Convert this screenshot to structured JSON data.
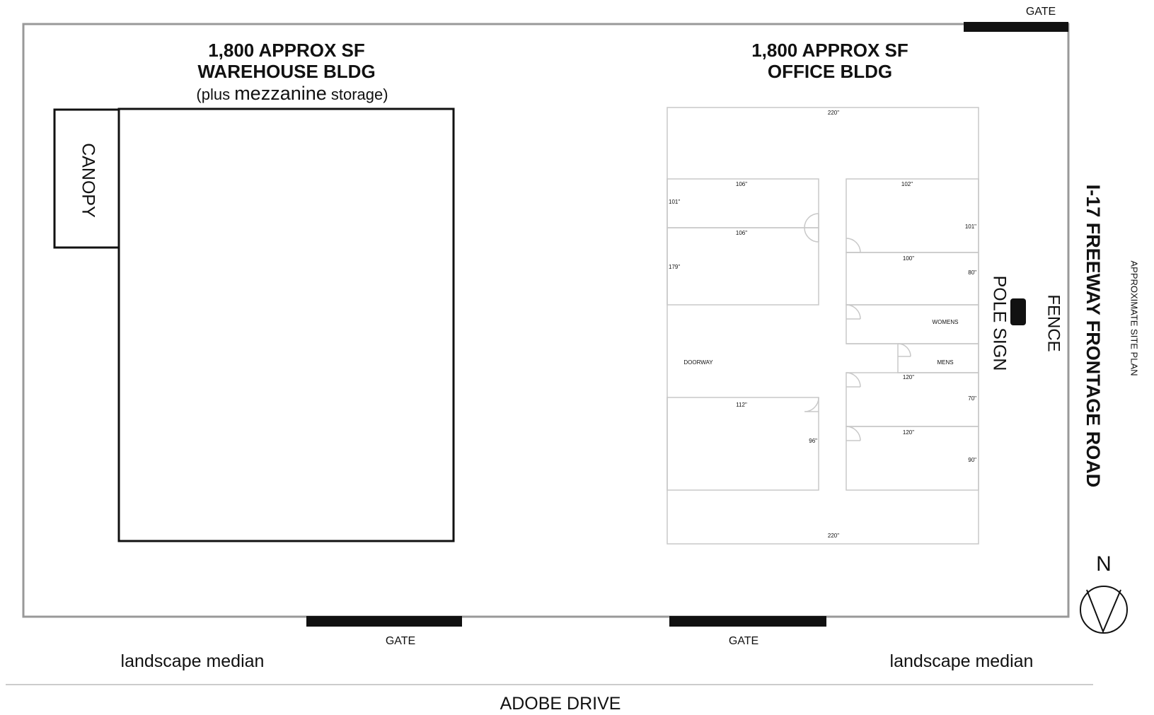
{
  "warehouse": {
    "title_line1": "1,800 APPROX SF",
    "title_line2": "WAREHOUSE BLDG",
    "note_prefix": "(plus ",
    "note_emph": "mezzanine",
    "note_suffix": " storage)",
    "canopy_label": "CANOPY"
  },
  "office": {
    "title_line1": "1,800 APPROX SF",
    "title_line2": "OFFICE BLDG",
    "rooms": {
      "doorway": "DOORWAY",
      "womens": "WOMENS",
      "mens": "MENS"
    },
    "dimensions": {
      "top": "220\"",
      "bottom": "220\"",
      "room_nw_width": "106\"",
      "room_nw_depth": "101\"",
      "room_w_width": "106\"",
      "room_w_depth": "179\"",
      "room_ne_width": "102\"",
      "room_ne_depth": "101\"",
      "room_e_width": "100\"",
      "room_e_depth": "80\"",
      "room_se1_width": "120\"",
      "room_se1_depth": "70\"",
      "room_se2_width": "120\"",
      "room_se2_depth": "90\"",
      "room_sw_width": "112\"",
      "room_sw_depth": "96\""
    }
  },
  "site": {
    "gate_label": "GATE",
    "fence_label": "FENCE",
    "pole_sign_label": "POLE SIGN",
    "frontage_road": "I-17 FREEWAY FRONTAGE ROAD",
    "plan_caption": "APPROXIMATE SITE PLAN",
    "north_label": "N",
    "landscape_left": "landscape median",
    "landscape_right": "landscape median",
    "street": "ADOBE DRIVE"
  }
}
